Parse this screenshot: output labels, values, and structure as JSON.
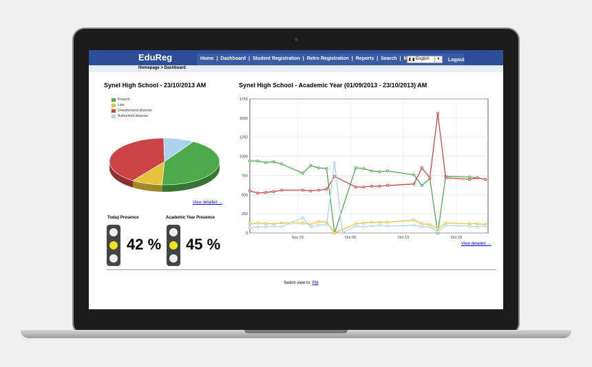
{
  "app": {
    "logo": "EduReg"
  },
  "nav": {
    "items": [
      "Home",
      "Dashboard",
      "Student Registration",
      "Retro Registration",
      "Reports",
      "Search",
      "More"
    ],
    "separator": "|",
    "language": "English",
    "logout": "Logout"
  },
  "breadcrumb": "Homepage > Dashboard",
  "left_panel": {
    "title": "Synel High School - 23/10/2013 AM",
    "view_detailed": "View detailed →",
    "today_presence_label": "Today Presence",
    "today_presence_value": "42 %",
    "academic_presence_label": "Academic Year Presence",
    "academic_presence_value": "45 %"
  },
  "right_panel": {
    "title": "Synel High School - Academic Year (01/09/2013 - 23/10/2013) AM",
    "view_detailed": "View detailed →"
  },
  "footer": {
    "switch_label": "Switch view to:",
    "switch_link": "PM"
  },
  "colors": {
    "present": "#4caa4a",
    "late": "#e8c23a",
    "unauthorized": "#cc4444",
    "authorized": "#aad4ee",
    "header": "#2c4e97"
  },
  "chart_data": [
    {
      "type": "pie",
      "title": "Synel High School - 23/10/2013 AM",
      "legend": [
        "Present",
        "Late",
        "Unauthorized absense",
        "Authorized absense"
      ],
      "legend_placement": "top-left",
      "values": [
        42,
        9,
        40,
        9
      ]
    },
    {
      "type": "line",
      "title": "Synel High School - Academic Year (01/09/2013 - 23/10/2013) AM",
      "ylim": [
        0,
        1750
      ],
      "yticks": [
        0,
        250,
        500,
        750,
        1000,
        1250,
        1500,
        1750
      ],
      "xlim": [
        0,
        45
      ],
      "xticks": [
        {
          "x": 9,
          "label": "Sep 29"
        },
        {
          "x": 19,
          "label": "Oct 06"
        },
        {
          "x": 29,
          "label": "Oct 13"
        },
        {
          "x": 39,
          "label": "Oct 20"
        }
      ],
      "grid": true,
      "series": [
        {
          "key": "present",
          "points": [
            [
              0,
              940
            ],
            [
              1.5,
              940
            ],
            [
              3,
              920
            ],
            [
              4.5,
              930
            ],
            [
              6,
              900
            ],
            [
              10,
              780
            ],
            [
              11.5,
              880
            ],
            [
              13,
              850
            ],
            [
              14.5,
              840
            ],
            [
              16,
              0
            ],
            [
              20,
              850
            ],
            [
              21.5,
              840
            ],
            [
              23,
              810
            ],
            [
              24.5,
              800
            ],
            [
              26,
              810
            ],
            [
              31,
              760
            ],
            [
              32.5,
              620
            ],
            [
              34,
              710
            ],
            [
              35.5,
              0
            ],
            [
              37,
              740
            ],
            [
              41.5,
              730
            ],
            [
              43,
              720
            ],
            [
              44.5,
              700
            ]
          ]
        },
        {
          "key": "late",
          "points": [
            [
              0,
              120
            ],
            [
              1.5,
              130
            ],
            [
              3,
              120
            ],
            [
              4.5,
              120
            ],
            [
              6,
              130
            ],
            [
              10,
              130
            ],
            [
              11.5,
              110
            ],
            [
              13,
              150
            ],
            [
              14.5,
              140
            ],
            [
              16,
              0
            ],
            [
              20,
              120
            ],
            [
              21.5,
              130
            ],
            [
              23,
              140
            ],
            [
              24.5,
              140
            ],
            [
              26,
              140
            ],
            [
              31,
              170
            ],
            [
              32.5,
              120
            ],
            [
              34,
              110
            ],
            [
              35.5,
              60
            ],
            [
              37,
              130
            ],
            [
              41.5,
              120
            ],
            [
              43,
              120
            ],
            [
              44.5,
              110
            ]
          ]
        },
        {
          "key": "unauthorized",
          "points": [
            [
              0,
              550
            ],
            [
              1.5,
              520
            ],
            [
              3,
              530
            ],
            [
              4.5,
              540
            ],
            [
              6,
              560
            ],
            [
              10,
              560
            ],
            [
              11.5,
              550
            ],
            [
              13,
              560
            ],
            [
              14.5,
              570
            ],
            [
              16,
              740
            ],
            [
              20,
              600
            ],
            [
              21.5,
              600
            ],
            [
              23,
              610
            ],
            [
              24.5,
              610
            ],
            [
              26,
              620
            ],
            [
              31,
              640
            ],
            [
              32.5,
              850
            ],
            [
              34,
              720
            ],
            [
              35.5,
              1560
            ],
            [
              37,
              720
            ],
            [
              41.5,
              700
            ],
            [
              43,
              720
            ],
            [
              44.5,
              700
            ]
          ]
        },
        {
          "key": "authorized",
          "points": [
            [
              0,
              70
            ],
            [
              1.5,
              80
            ],
            [
              3,
              80
            ],
            [
              4.5,
              90
            ],
            [
              6,
              80
            ],
            [
              10,
              200
            ],
            [
              11.5,
              80
            ],
            [
              13,
              100
            ],
            [
              14.5,
              110
            ],
            [
              16,
              920
            ],
            [
              17.5,
              0
            ],
            [
              20,
              90
            ],
            [
              21.5,
              80
            ],
            [
              23,
              90
            ],
            [
              24.5,
              100
            ],
            [
              26,
              90
            ],
            [
              31,
              100
            ],
            [
              32.5,
              80
            ],
            [
              34,
              80
            ],
            [
              35.5,
              20
            ],
            [
              37,
              100
            ],
            [
              41.5,
              90
            ],
            [
              43,
              80
            ],
            [
              44.5,
              90
            ]
          ]
        }
      ]
    }
  ]
}
